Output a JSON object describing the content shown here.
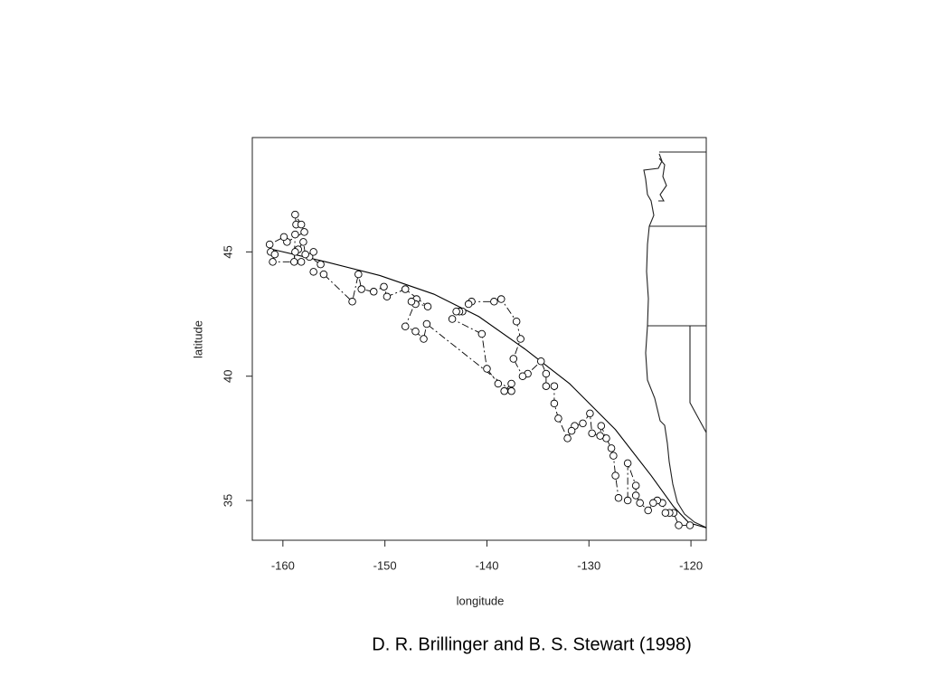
{
  "chart_data": {
    "type": "scatter",
    "xlabel": "longitude",
    "ylabel": "latitude",
    "xlim": [
      -163.0,
      -118.5
    ],
    "ylim": [
      33.4,
      49.6
    ],
    "xticks": [
      -160,
      -150,
      -140,
      -130,
      -120
    ],
    "yticks": [
      35,
      40,
      45
    ],
    "color": "#000000",
    "x": [
      -120.1,
      -121.2,
      -121.7,
      -122.1,
      -122.5,
      -122.8,
      -123.3,
      -123.7,
      -124.2,
      -125.0,
      -125.4,
      -125.4,
      -126.2,
      -126.2,
      -127.1,
      -127.4,
      -127.6,
      -127.8,
      -128.3,
      -128.8,
      -128.9,
      -129.7,
      -129.9,
      -130.6,
      -131.4,
      -131.7,
      -132.1,
      -133.0,
      -133.4,
      -133.4,
      -134.2,
      -134.2,
      -134.7,
      -136.0,
      -136.5,
      -137.4,
      -136.7,
      -137.1,
      -138.6,
      -139.3,
      -141.5,
      -141.8,
      -142.4,
      -142.7,
      -143.0,
      -143.4,
      -140.5,
      -140.0,
      -138.9,
      -138.3,
      -137.6,
      -137.6,
      -145.9,
      -146.2,
      -147.0,
      -148.0,
      -146.9,
      -147.0,
      -147.4,
      -145.8,
      -148.0,
      -149.8,
      -150.1,
      -151.1,
      -152.3,
      -152.6,
      -153.2,
      -156.0,
      -157.0,
      -156.3,
      -157.4,
      -157.0,
      -157.8,
      -158.0,
      -158.5,
      -158.8,
      -158.9,
      -158.8,
      -158.7,
      -158.8,
      -158.2,
      -157.9,
      -159.6,
      -159.9,
      -161.3,
      -161.2,
      -160.8,
      -161.0,
      -158.2
    ],
    "y": [
      34.0,
      34.0,
      34.5,
      34.5,
      34.5,
      34.9,
      35.0,
      34.9,
      34.6,
      34.9,
      35.2,
      35.6,
      36.5,
      35.0,
      35.1,
      36.0,
      36.8,
      37.1,
      37.5,
      38.0,
      37.6,
      37.7,
      38.5,
      38.1,
      38.0,
      37.8,
      37.5,
      38.3,
      38.9,
      39.6,
      39.6,
      40.1,
      40.6,
      40.1,
      40.0,
      40.7,
      41.5,
      42.2,
      43.1,
      43.0,
      43.0,
      42.9,
      42.6,
      42.6,
      42.6,
      42.3,
      41.7,
      40.3,
      39.7,
      39.4,
      39.7,
      39.4,
      42.1,
      41.5,
      41.8,
      42.0,
      43.1,
      42.9,
      43.0,
      42.8,
      43.5,
      43.2,
      43.6,
      43.4,
      43.5,
      44.1,
      43.0,
      44.1,
      44.2,
      44.5,
      44.8,
      45.0,
      44.9,
      45.4,
      45.1,
      45.0,
      44.6,
      45.7,
      46.1,
      46.5,
      46.1,
      45.8,
      45.4,
      45.6,
      45.3,
      45.0,
      44.9,
      44.6,
      44.6
    ],
    "curve": {
      "x": [
        -161.0,
        -155.8,
        -150.5,
        -145.2,
        -140.8,
        -136.3,
        -131.9,
        -127.4,
        -123.9,
        -121.7,
        -120.2,
        -118.5
      ],
      "y": [
        45.1,
        44.6,
        44.05,
        43.3,
        42.4,
        41.1,
        39.7,
        37.85,
        36.0,
        34.75,
        34.1,
        33.9
      ]
    }
  },
  "caption": "D. R. Brillinger and B. S. Stewart (1998)"
}
